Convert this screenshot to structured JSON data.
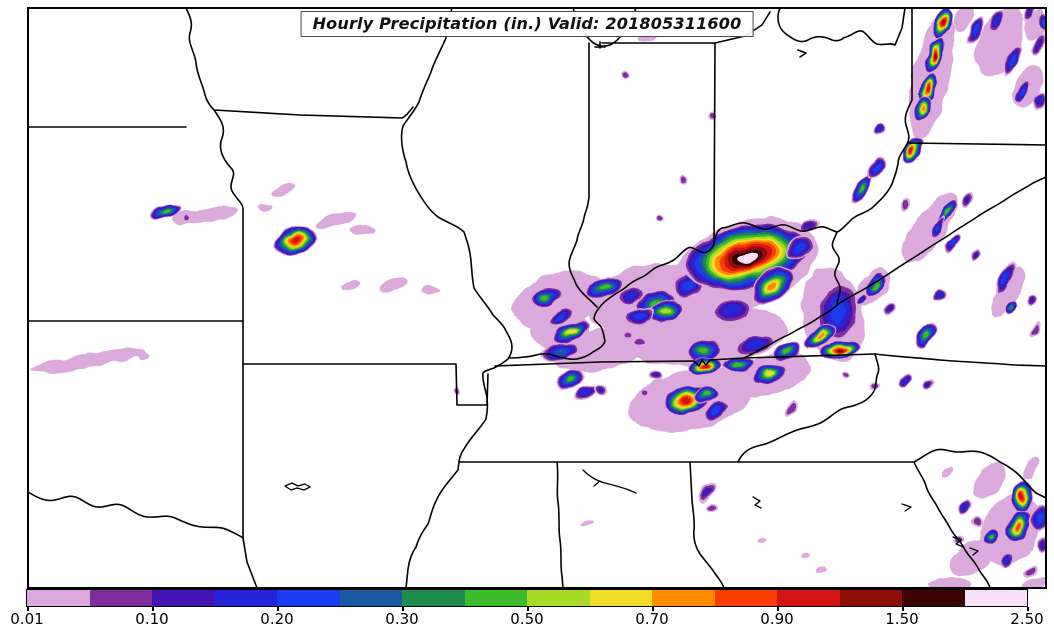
{
  "title": "Hourly Precipitation (in.) Valid: 201805311600",
  "colorbar": {
    "tick_labels": [
      "0.01",
      "0.10",
      "0.20",
      "0.30",
      "0.50",
      "0.70",
      "0.90",
      "1.50",
      "2.50"
    ],
    "level_boundaries": [
      "0.01",
      "0.05",
      "0.10",
      "0.15",
      "0.20",
      "0.25",
      "0.30",
      "0.40",
      "0.50",
      "0.60",
      "0.70",
      "0.80",
      "0.90",
      "1.00",
      "1.50",
      "2.00",
      "2.50"
    ],
    "colors": [
      "#DCA9DC",
      "#7E2D9C",
      "#4314B2",
      "#2525D8",
      "#1A3BEE",
      "#1B58A2",
      "#1F8B4D",
      "#3DBB2A",
      "#A8DC28",
      "#F2DC28",
      "#FF8C00",
      "#FA3C00",
      "#D41414",
      "#8B0E0A",
      "#3B0403",
      "#F7E1F7"
    ]
  },
  "map": {
    "background": "#FFFFFF",
    "state_border_color": "#000000"
  },
  "precip": {
    "cell_format": [
      "x",
      "y",
      "width",
      "height",
      "rotation_deg",
      "peak_level_index"
    ],
    "cells": [
      [
        205,
        215,
        70,
        14,
        -8,
        0
      ],
      [
        283,
        190,
        28,
        10,
        -20,
        0
      ],
      [
        337,
        220,
        42,
        12,
        -15,
        0
      ],
      [
        362,
        230,
        26,
        10,
        0,
        0
      ],
      [
        393,
        284,
        26,
        12,
        -20,
        0
      ],
      [
        352,
        286,
        18,
        8,
        -15,
        0
      ],
      [
        430,
        291,
        18,
        8,
        0,
        0
      ],
      [
        265,
        207,
        14,
        7,
        0,
        0
      ],
      [
        88,
        361,
        118,
        13,
        -9,
        0
      ],
      [
        143,
        356,
        12,
        7,
        0,
        0
      ],
      [
        648,
        36,
        22,
        8,
        -20,
        0
      ],
      [
        560,
        300,
        95,
        55,
        -15,
        0
      ],
      [
        650,
        300,
        125,
        70,
        -10,
        0
      ],
      [
        745,
        265,
        150,
        85,
        -20,
        0
      ],
      [
        705,
        335,
        165,
        60,
        -5,
        0
      ],
      [
        600,
        350,
        95,
        40,
        -10,
        0
      ],
      [
        560,
        330,
        60,
        40,
        0,
        0
      ],
      [
        690,
        400,
        125,
        60,
        -12,
        0
      ],
      [
        770,
        375,
        85,
        40,
        -15,
        0
      ],
      [
        833,
        315,
        60,
        95,
        -15,
        0
      ],
      [
        930,
        228,
        85,
        32,
        -55,
        0
      ],
      [
        1008,
        292,
        55,
        22,
        -60,
        0
      ],
      [
        872,
        288,
        45,
        24,
        -50,
        0
      ],
      [
        932,
        75,
        130,
        36,
        -78,
        0
      ],
      [
        1000,
        42,
        75,
        40,
        -65,
        0
      ],
      [
        1028,
        88,
        45,
        26,
        -65,
        0
      ],
      [
        963,
        18,
        30,
        16,
        -65,
        0
      ],
      [
        1036,
        25,
        30,
        18,
        -65,
        0
      ],
      [
        1010,
        530,
        75,
        55,
        -60,
        0
      ],
      [
        972,
        558,
        50,
        28,
        -30,
        0
      ],
      [
        990,
        480,
        42,
        24,
        -50,
        0
      ],
      [
        952,
        585,
        45,
        16,
        0,
        0
      ],
      [
        1031,
        468,
        26,
        12,
        -60,
        0
      ],
      [
        1035,
        585,
        30,
        12,
        -20,
        0
      ],
      [
        947,
        472,
        14,
        8,
        -40,
        0
      ],
      [
        740,
        390,
        20,
        8,
        -10,
        0
      ],
      [
        663,
        428,
        9,
        6,
        0,
        0
      ],
      [
        636,
        419,
        8,
        6,
        0,
        0
      ],
      [
        588,
        525,
        13,
        6,
        -20,
        0
      ],
      [
        762,
        541,
        10,
        6,
        0,
        0
      ],
      [
        820,
        570,
        12,
        7,
        -20,
        0
      ],
      [
        806,
        556,
        8,
        6,
        0,
        0
      ],
      [
        166,
        212,
        30,
        13,
        -10,
        7
      ],
      [
        188,
        218,
        7,
        7,
        0,
        1
      ],
      [
        296,
        240,
        44,
        26,
        -15,
        12
      ],
      [
        625,
        75,
        7,
        7,
        0,
        1
      ],
      [
        684,
        180,
        9,
        9,
        0,
        1
      ],
      [
        712,
        115,
        9,
        9,
        0,
        1
      ],
      [
        660,
        218,
        8,
        8,
        0,
        1
      ],
      [
        457,
        390,
        8,
        8,
        0,
        1
      ],
      [
        545,
        297,
        34,
        20,
        -20,
        7
      ],
      [
        560,
        318,
        26,
        16,
        -30,
        4
      ],
      [
        572,
        332,
        42,
        17,
        -25,
        9
      ],
      [
        606,
        288,
        40,
        20,
        -10,
        7
      ],
      [
        632,
        296,
        30,
        14,
        -15,
        3
      ],
      [
        655,
        303,
        40,
        22,
        -15,
        7
      ],
      [
        665,
        311,
        36,
        20,
        -15,
        8
      ],
      [
        688,
        287,
        30,
        26,
        0,
        4
      ],
      [
        640,
        316,
        30,
        16,
        -20,
        4
      ],
      [
        747,
        257,
        128,
        64,
        -12,
        15
      ],
      [
        772,
        286,
        48,
        30,
        -35,
        10
      ],
      [
        800,
        247,
        30,
        22,
        -20,
        4
      ],
      [
        733,
        311,
        40,
        24,
        -10,
        3
      ],
      [
        810,
        226,
        20,
        12,
        -30,
        2
      ],
      [
        560,
        352,
        36,
        18,
        -10,
        5
      ],
      [
        570,
        380,
        30,
        18,
        -25,
        7
      ],
      [
        585,
        393,
        22,
        12,
        -20,
        3
      ],
      [
        600,
        390,
        16,
        10,
        0,
        2
      ],
      [
        640,
        342,
        16,
        10,
        -20,
        1
      ],
      [
        628,
        337,
        10,
        7,
        0,
        1
      ],
      [
        704,
        350,
        34,
        22,
        -10,
        7
      ],
      [
        705,
        366,
        32,
        18,
        -8,
        12
      ],
      [
        737,
        365,
        34,
        14,
        -5,
        7
      ],
      [
        770,
        374,
        36,
        18,
        -15,
        9
      ],
      [
        686,
        400,
        46,
        28,
        -10,
        12
      ],
      [
        706,
        395,
        26,
        16,
        -20,
        7
      ],
      [
        716,
        410,
        28,
        16,
        -30,
        4
      ],
      [
        655,
        375,
        14,
        10,
        0,
        2
      ],
      [
        645,
        393,
        9,
        8,
        0,
        1
      ],
      [
        755,
        345,
        42,
        20,
        -15,
        3
      ],
      [
        787,
        352,
        30,
        18,
        -20,
        7
      ],
      [
        790,
        410,
        18,
        10,
        -60,
        1
      ],
      [
        838,
        312,
        42,
        62,
        12,
        4
      ],
      [
        820,
        337,
        34,
        18,
        -35,
        10
      ],
      [
        840,
        350,
        42,
        18,
        -10,
        13
      ],
      [
        926,
        334,
        30,
        16,
        -55,
        7
      ],
      [
        890,
        310,
        16,
        10,
        -45,
        2
      ],
      [
        862,
        300,
        13,
        9,
        -45,
        3
      ],
      [
        940,
        295,
        13,
        10,
        -45,
        3
      ],
      [
        905,
        380,
        13,
        9,
        -40,
        3
      ],
      [
        930,
        385,
        13,
        9,
        -40,
        2
      ],
      [
        845,
        375,
        9,
        7,
        0,
        1
      ],
      [
        875,
        388,
        10,
        8,
        -30,
        1
      ],
      [
        875,
        285,
        28,
        14,
        -50,
        7
      ],
      [
        861,
        190,
        32,
        14,
        -55,
        7
      ],
      [
        876,
        168,
        28,
        12,
        -55,
        4
      ],
      [
        880,
        130,
        15,
        10,
        -50,
        3
      ],
      [
        905,
        205,
        14,
        8,
        -50,
        1
      ],
      [
        947,
        213,
        32,
        12,
        -55,
        7
      ],
      [
        937,
        228,
        25,
        10,
        -55,
        4
      ],
      [
        953,
        243,
        25,
        10,
        -55,
        4
      ],
      [
        968,
        200,
        20,
        10,
        -55,
        2
      ],
      [
        975,
        255,
        16,
        8,
        -55,
        2
      ],
      [
        1005,
        278,
        36,
        13,
        -60,
        4
      ],
      [
        1012,
        307,
        16,
        11,
        -55,
        6
      ],
      [
        1033,
        300,
        14,
        8,
        -55,
        2
      ],
      [
        1035,
        330,
        20,
        8,
        -60,
        1
      ],
      [
        943,
        22,
        36,
        17,
        -70,
        13
      ],
      [
        935,
        55,
        38,
        17,
        -70,
        13
      ],
      [
        928,
        88,
        32,
        15,
        -70,
        12
      ],
      [
        922,
        108,
        28,
        13,
        -70,
        10
      ],
      [
        913,
        151,
        30,
        15,
        -60,
        12
      ],
      [
        976,
        30,
        32,
        13,
        -65,
        4
      ],
      [
        997,
        21,
        25,
        10,
        -65,
        3
      ],
      [
        1012,
        60,
        32,
        13,
        -65,
        4
      ],
      [
        1022,
        92,
        27,
        11,
        -65,
        4
      ],
      [
        1038,
        45,
        25,
        10,
        -65,
        2
      ],
      [
        1040,
        100,
        21,
        10,
        -65,
        3
      ],
      [
        1030,
        13,
        20,
        9,
        -65,
        2
      ],
      [
        1044,
        22,
        16,
        12,
        -65,
        5
      ],
      [
        1022,
        497,
        32,
        22,
        -75,
        12
      ],
      [
        1019,
        526,
        32,
        24,
        -70,
        11
      ],
      [
        1040,
        518,
        20,
        28,
        8,
        4
      ],
      [
        991,
        536,
        21,
        14,
        -45,
        7
      ],
      [
        966,
        507,
        17,
        11,
        -45,
        3
      ],
      [
        977,
        521,
        12,
        9,
        0,
        1
      ],
      [
        959,
        540,
        12,
        9,
        0,
        1
      ],
      [
        1007,
        560,
        18,
        12,
        -45,
        3
      ],
      [
        1030,
        572,
        16,
        10,
        -45,
        1
      ],
      [
        1043,
        545,
        13,
        15,
        0,
        2
      ],
      [
        707,
        492,
        23,
        14,
        -55,
        2
      ],
      [
        713,
        507,
        12,
        9,
        0,
        1
      ]
    ]
  }
}
